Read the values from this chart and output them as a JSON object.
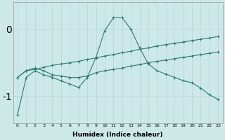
{
  "xlabel": "Humidex (Indice chaleur)",
  "background_color": "#cce9e8",
  "grid_color": "#b8d8d8",
  "line_color": "#2d7a6e",
  "xlim": [
    -0.5,
    23.5
  ],
  "ylim": [
    -1.4,
    0.4
  ],
  "yticks": [
    0,
    -1
  ],
  "xticks": [
    0,
    1,
    2,
    3,
    4,
    5,
    6,
    7,
    8,
    9,
    10,
    11,
    12,
    13,
    14,
    15,
    16,
    17,
    18,
    19,
    20,
    21,
    22,
    23
  ],
  "line1_x": [
    0,
    1,
    2,
    3,
    4,
    5,
    6,
    7,
    8,
    9,
    10,
    11,
    12,
    13,
    14,
    15,
    16,
    17,
    18,
    19,
    20,
    21,
    22,
    23
  ],
  "line1_y": [
    -1.28,
    -0.72,
    -0.62,
    -0.68,
    -0.72,
    -0.77,
    -0.82,
    -0.87,
    -0.72,
    -0.42,
    -0.02,
    0.17,
    0.17,
    0.0,
    -0.28,
    -0.52,
    -0.62,
    -0.67,
    -0.72,
    -0.77,
    -0.8,
    -0.88,
    -0.98,
    -1.05
  ],
  "line2_x": [
    0,
    1,
    2,
    3,
    4,
    5,
    6,
    7,
    8,
    9,
    10,
    11,
    12,
    13,
    14,
    15,
    16,
    17,
    18,
    19,
    20,
    21,
    22,
    23
  ],
  "line2_y": [
    -0.72,
    -0.62,
    -0.58,
    -0.62,
    -0.68,
    -0.7,
    -0.72,
    -0.72,
    -0.7,
    -0.65,
    -0.62,
    -0.6,
    -0.58,
    -0.55,
    -0.53,
    -0.5,
    -0.48,
    -0.46,
    -0.44,
    -0.42,
    -0.4,
    -0.38,
    -0.36,
    -0.34
  ],
  "line3_x": [
    0,
    1,
    2,
    3,
    4,
    5,
    6,
    7,
    8,
    9,
    10,
    11,
    12,
    13,
    14,
    15,
    16,
    17,
    18,
    19,
    20,
    21,
    22,
    23
  ],
  "line3_y": [
    -0.72,
    -0.62,
    -0.6,
    -0.57,
    -0.54,
    -0.52,
    -0.5,
    -0.48,
    -0.45,
    -0.43,
    -0.4,
    -0.38,
    -0.35,
    -0.33,
    -0.3,
    -0.28,
    -0.25,
    -0.23,
    -0.21,
    -0.19,
    -0.17,
    -0.15,
    -0.13,
    -0.11
  ]
}
